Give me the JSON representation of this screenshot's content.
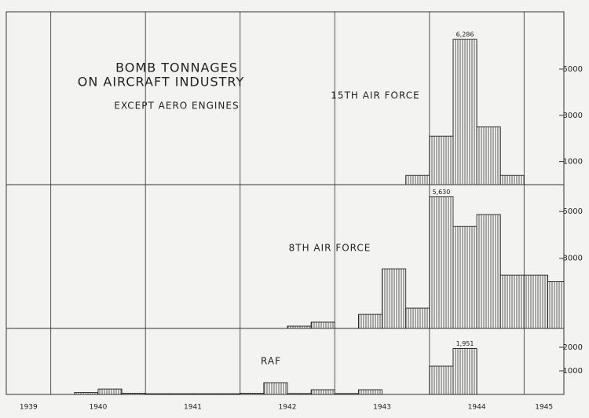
{
  "title": [
    "BOMB TONNAGES",
    "ON AIRCRAFT INDUSTRY"
  ],
  "subtitle": "EXCEPT AERO ENGINES",
  "chart_data": [
    {
      "type": "histogram",
      "label": "15TH AIR FORCE",
      "bins": [
        1943.75,
        1944,
        1944.25,
        1944.5,
        1944.75,
        1945
      ],
      "values": [
        400,
        2100,
        6286,
        2500,
        400
      ],
      "value_labels": [
        null,
        null,
        "6,286",
        null,
        null
      ],
      "xlim": [
        1939.53,
        1945.42
      ],
      "xticks": [
        1940,
        1941,
        1942,
        1943,
        1944,
        1945
      ],
      "ylim": [
        0,
        7480
      ],
      "yticks": [
        1000,
        3000,
        5000
      ]
    },
    {
      "type": "histogram",
      "label": "8TH AIR FORCE",
      "bins": [
        1942.5,
        1942.75,
        1943,
        1943.25,
        1943.5,
        1943.75,
        1944,
        1944.25,
        1944.5,
        1944.75,
        1945,
        1945.25,
        1945.42
      ],
      "values": [
        100,
        270,
        0,
        600,
        2550,
        870,
        5630,
        4360,
        4870,
        2280,
        2280,
        2000
      ],
      "value_labels": [
        null,
        null,
        null,
        null,
        null,
        null,
        "5,630",
        null,
        null,
        null,
        null,
        null
      ],
      "xlim": [
        1939.53,
        1945.42
      ],
      "xticks": [
        1940,
        1941,
        1942,
        1943,
        1944,
        1945
      ],
      "ylim": [
        0,
        6150
      ],
      "yticks": [
        3000,
        5000
      ]
    },
    {
      "type": "histogram",
      "label": "RAF",
      "bins": [
        1940,
        1940.25,
        1940.5,
        1940.75,
        1941,
        1941.25,
        1941.5,
        1941.75,
        1942,
        1942.25,
        1942.5,
        1942.75,
        1943,
        1943.25,
        1943.5,
        1943.75,
        1944,
        1944.25,
        1944.5
      ],
      "values": [
        0,
        80,
        230,
        50,
        30,
        30,
        30,
        30,
        50,
        500,
        40,
        200,
        40,
        200,
        0,
        0,
        1200,
        1951
      ],
      "value_labels": [
        null,
        null,
        null,
        null,
        null,
        null,
        null,
        null,
        null,
        null,
        null,
        null,
        null,
        null,
        null,
        null,
        null,
        "1,951"
      ],
      "xlim": [
        1939.53,
        1945.42
      ],
      "xticks": [
        1940,
        1941,
        1942,
        1943,
        1944,
        1945
      ],
      "year_labels": [
        "1939",
        "1940",
        "1941",
        "1942",
        "1943",
        "1944",
        "1945"
      ],
      "ylim": [
        0,
        2800
      ],
      "yticks": [
        1000,
        2000
      ]
    }
  ]
}
